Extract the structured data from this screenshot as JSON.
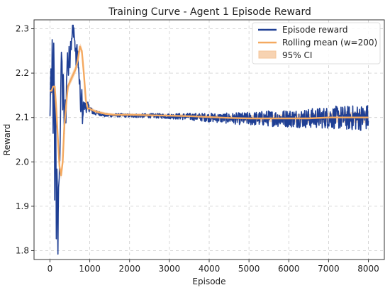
{
  "chart_data": {
    "type": "line",
    "title": "Training Curve - Agent 1 Episode Reward",
    "xlabel": "Episode",
    "ylabel": "Reward",
    "xlim": [
      -400,
      8400
    ],
    "ylim": [
      1.78,
      2.32
    ],
    "xticks": [
      0,
      1000,
      2000,
      3000,
      4000,
      5000,
      6000,
      7000,
      8000
    ],
    "yticks": [
      1.8,
      1.9,
      2.0,
      2.1,
      2.2,
      2.3
    ],
    "xtick_labels": [
      "0",
      "1000",
      "2000",
      "3000",
      "4000",
      "5000",
      "6000",
      "7000",
      "8000"
    ],
    "ytick_labels": [
      "1.8",
      "1.9",
      "2.0",
      "2.1",
      "2.2",
      "2.3"
    ],
    "grid": true,
    "legend_position": "top-right",
    "series": [
      {
        "name": "Episode reward",
        "color": "#1f3f94",
        "x": [
          0,
          20,
          40,
          60,
          80,
          100,
          120,
          140,
          160,
          180,
          200,
          220,
          240,
          260,
          280,
          300,
          320,
          340,
          360,
          380,
          400,
          420,
          440,
          460,
          480,
          500,
          520,
          540,
          560,
          580,
          600,
          620,
          640,
          660,
          680,
          700,
          720,
          740,
          760,
          780,
          800,
          820,
          840,
          860,
          880,
          900,
          950,
          1000,
          1100,
          1200,
          1400,
          1600,
          1800,
          2000,
          2500,
          3000,
          3500,
          4000,
          4500,
          5000,
          5500,
          6000,
          6500,
          7000,
          7500,
          8000
        ],
        "y": [
          2.1,
          2.2,
          2.15,
          2.28,
          2.05,
          2.3,
          1.93,
          2.17,
          1.85,
          2.0,
          1.8,
          1.95,
          1.98,
          2.08,
          2.22,
          2.24,
          2.12,
          2.2,
          2.05,
          2.15,
          2.08,
          2.2,
          2.25,
          2.18,
          2.27,
          2.22,
          2.28,
          2.26,
          2.29,
          2.3,
          2.3,
          2.27,
          2.25,
          2.22,
          2.26,
          2.24,
          2.2,
          2.18,
          2.15,
          2.1,
          2.16,
          2.08,
          2.14,
          2.12,
          2.13,
          2.12,
          2.125,
          2.12,
          2.11,
          2.11,
          2.105,
          2.105,
          2.105,
          2.104,
          2.104,
          2.103,
          2.102,
          2.1,
          2.098,
          2.097,
          2.098,
          2.098,
          2.098,
          2.1,
          2.099,
          2.1
        ],
        "noise_amplitude": [
          0.01,
          0.02,
          0.02,
          0.03,
          0.03,
          0.03,
          0.03,
          0.03,
          0.03,
          0.03,
          0.03,
          0.03,
          0.03,
          0.02,
          0.02,
          0.02,
          0.02,
          0.02,
          0.02,
          0.02,
          0.02,
          0.02,
          0.02,
          0.02,
          0.02,
          0.02,
          0.02,
          0.02,
          0.02,
          0.02,
          0.02,
          0.02,
          0.02,
          0.02,
          0.02,
          0.02,
          0.02,
          0.02,
          0.02,
          0.02,
          0.02,
          0.01,
          0.01,
          0.01,
          0.01,
          0.01,
          0.01,
          0.008,
          0.006,
          0.005,
          0.004,
          0.004,
          0.004,
          0.004,
          0.005,
          0.006,
          0.008,
          0.01,
          0.012,
          0.015,
          0.018,
          0.02,
          0.022,
          0.025,
          0.028,
          0.03
        ]
      },
      {
        "name": "Rolling mean (w=200)",
        "color": "#f4a960",
        "x": [
          0,
          40,
          80,
          120,
          160,
          200,
          240,
          280,
          320,
          360,
          400,
          450,
          500,
          550,
          600,
          650,
          700,
          750,
          800,
          850,
          900,
          950,
          1000,
          1100,
          1200,
          1400,
          1600,
          1800,
          2000,
          2500,
          3000,
          3500,
          4000,
          4500,
          5000,
          5500,
          6000,
          6500,
          7000,
          7500,
          8000
        ],
        "y": [
          2.16,
          2.16,
          2.17,
          2.17,
          2.12,
          2.05,
          1.99,
          1.97,
          2.0,
          2.08,
          2.12,
          2.17,
          2.18,
          2.19,
          2.2,
          2.21,
          2.23,
          2.26,
          2.25,
          2.2,
          2.14,
          2.12,
          2.12,
          2.115,
          2.112,
          2.108,
          2.106,
          2.106,
          2.106,
          2.105,
          2.104,
          2.103,
          2.101,
          2.099,
          2.098,
          2.098,
          2.098,
          2.098,
          2.1,
          2.1,
          2.1
        ]
      },
      {
        "name": "95% CI",
        "color": "#f7d3b2"
      }
    ]
  }
}
